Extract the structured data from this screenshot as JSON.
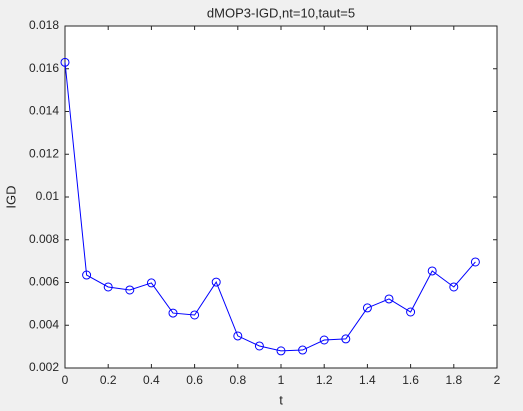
{
  "chart_data": {
    "type": "line",
    "title": "dMOP3-IGD,nt=10,taut=5",
    "x_label": "t",
    "y_label": "IGD",
    "series": [
      {
        "color": "#0000ff",
        "x": [
          0,
          0.1,
          0.2,
          0.3,
          0.4,
          0.5,
          0.6,
          0.7,
          0.8,
          0.9,
          1.0,
          1.1,
          1.2,
          1.3,
          1.4,
          1.5,
          1.6,
          1.7,
          1.8,
          1.9
        ],
        "values": [
          0.0163,
          0.00635,
          0.00579,
          0.00565,
          0.00598,
          0.00457,
          0.00448,
          0.00602,
          0.0035,
          0.00303,
          0.0028,
          0.00284,
          0.00331,
          0.00336,
          0.00481,
          0.00523,
          0.00462,
          0.00654,
          0.00579,
          0.00696
        ]
      }
    ],
    "xlim": [
      0,
      2
    ],
    "xticks": [
      0,
      0.2,
      0.4,
      0.6,
      0.8,
      1,
      1.2,
      1.4,
      1.6,
      1.8,
      2
    ],
    "ylim": [
      0.002,
      0.018
    ],
    "yticks": [
      0.002,
      0.004,
      0.006,
      0.008,
      0.01,
      0.012,
      0.014,
      0.016,
      0.018
    ],
    "grid": false
  }
}
